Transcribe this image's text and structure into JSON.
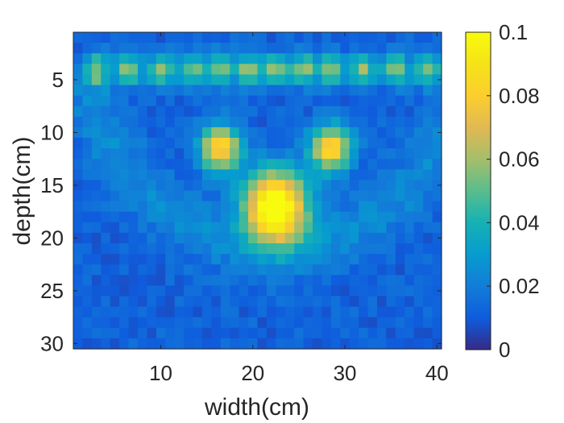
{
  "chart_data": {
    "type": "heatmap",
    "title": "",
    "xlabel": "width(cm)",
    "ylabel": "depth(cm)",
    "x_ticks": [
      10,
      20,
      30,
      40
    ],
    "y_ticks": [
      5,
      10,
      15,
      20,
      25,
      30
    ],
    "xlim": [
      0.5,
      40.5
    ],
    "ylim": [
      0.5,
      30.5
    ],
    "y_direction": "reversed",
    "grid": false,
    "colormap": "parula",
    "colorbar": {
      "location": "right",
      "limits": [
        0,
        0.1
      ],
      "ticks": [
        "0",
        "0.02",
        "0.04",
        "0.06",
        "0.08",
        "0.1"
      ]
    },
    "grid_size": {
      "columns": 40,
      "rows": 30
    },
    "features": [
      {
        "type": "hotspot",
        "x": 22.5,
        "y": 17,
        "peak": 0.1
      },
      {
        "type": "hotspot",
        "x": 16.5,
        "y": 11.5,
        "peak": 0.075
      },
      {
        "type": "hotspot",
        "x": 28.5,
        "y": 11.5,
        "peak": 0.075
      },
      {
        "type": "hotspot_row",
        "y": 4,
        "x": [
          3,
          6.5,
          10,
          13.5,
          16.5,
          19.5,
          22.5,
          25.5,
          28.5,
          32,
          35.5,
          39
        ],
        "peak": 0.045
      }
    ],
    "background_level": 0.012
  }
}
